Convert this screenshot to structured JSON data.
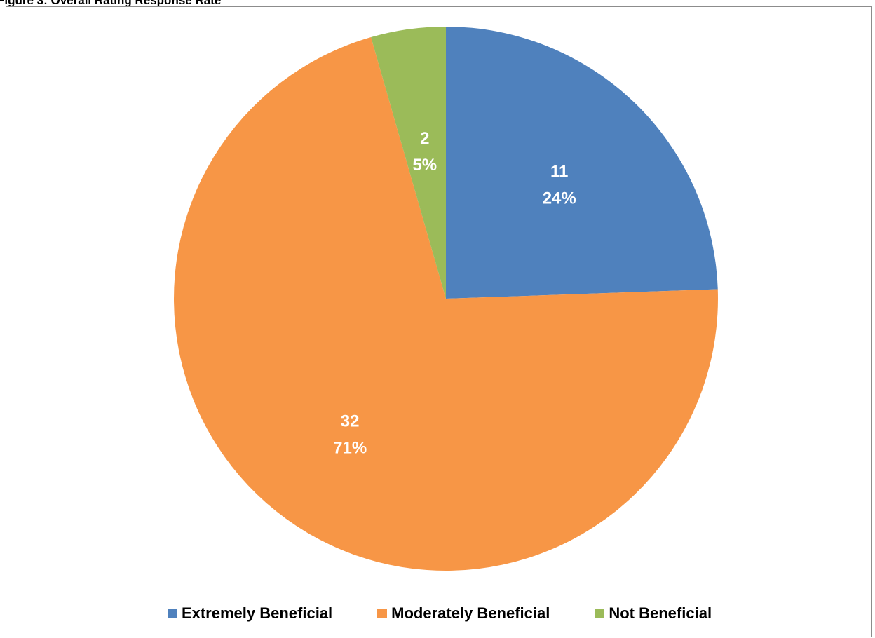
{
  "caption": "Figure 3: Overall Rating Response Rate",
  "chart_data": {
    "type": "pie",
    "title": "",
    "start_angle_deg": 0,
    "direction": "clockwise",
    "slices": [
      {
        "name": "Extremely Beneficial",
        "value": 11,
        "percent_label": "24%",
        "color": "#4f81bd"
      },
      {
        "name": "Moderately Beneficial",
        "value": 32,
        "percent_label": "71%",
        "color": "#f79646"
      },
      {
        "name": "Not Beneficial",
        "value": 2,
        "percent_label": "5%",
        "color": "#9bbb59"
      }
    ],
    "legend_position": "bottom"
  }
}
